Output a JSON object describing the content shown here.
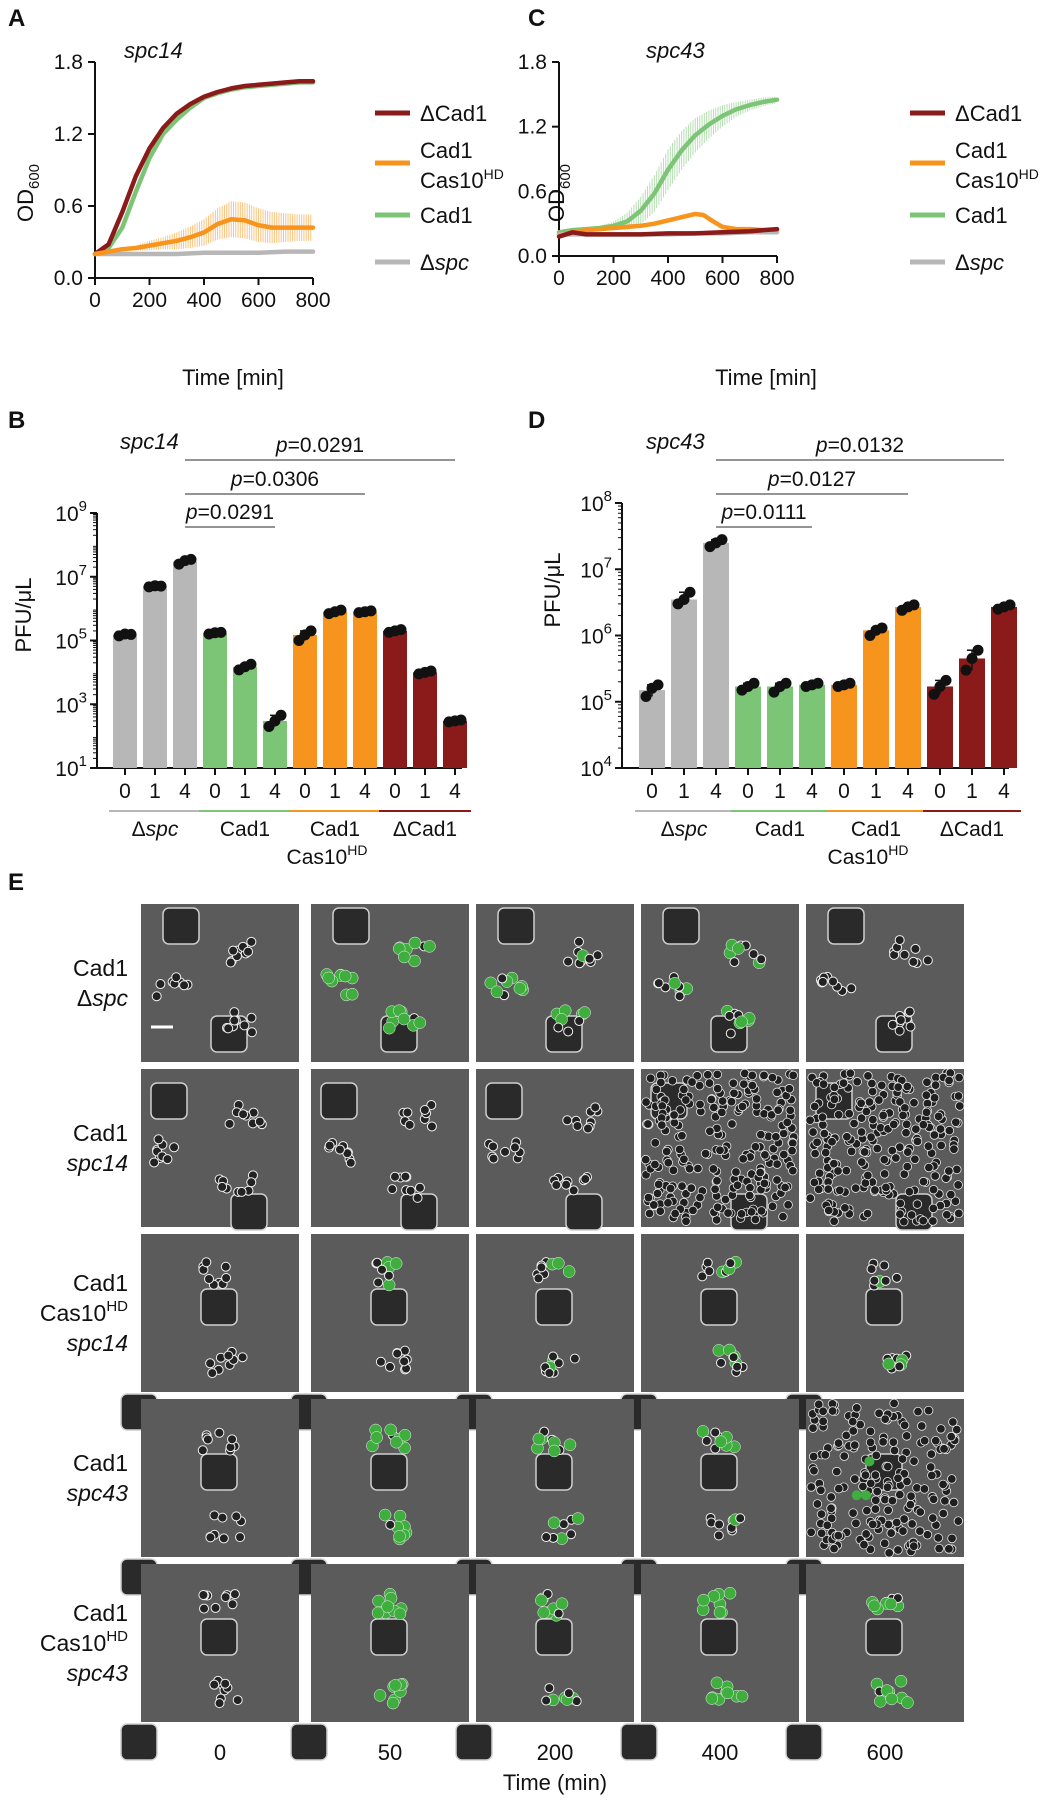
{
  "panel_labels": {
    "A": "A",
    "B": "B",
    "C": "C",
    "D": "D",
    "E": "E"
  },
  "colors": {
    "dcad1": "#8b1a1a",
    "cad1_cas10hd": "#f7941d",
    "cad1": "#7cc576",
    "dspc": "#b7b7b7",
    "dot": "#111111"
  },
  "chart_data": [
    {
      "panel": "A",
      "type": "line",
      "title": "spc14",
      "xlabel": "Time [min]",
      "ylabel_main": "OD",
      "ylabel_sub": "600",
      "xlim": [
        0,
        800
      ],
      "ylim": [
        0,
        1.8
      ],
      "xticks": [
        0,
        200,
        400,
        600,
        800
      ],
      "yticks": [
        "0.0",
        "0.6",
        "1.2",
        "1.8"
      ],
      "legend": [
        "ΔCad1",
        "Cad1",
        "Cas10",
        "HD",
        "Cad1",
        "Δ",
        "spc"
      ],
      "series": [
        {
          "key": "cad1",
          "x": [
            0,
            50,
            100,
            150,
            200,
            250,
            300,
            350,
            400,
            450,
            500,
            550,
            600,
            650,
            700,
            750,
            800
          ],
          "y": [
            0.2,
            0.25,
            0.42,
            0.72,
            1.0,
            1.2,
            1.32,
            1.42,
            1.5,
            1.54,
            1.57,
            1.59,
            1.6,
            1.61,
            1.62,
            1.63,
            1.63
          ]
        },
        {
          "key": "dcad1",
          "x": [
            0,
            50,
            100,
            150,
            200,
            250,
            300,
            350,
            400,
            450,
            500,
            550,
            600,
            650,
            700,
            750,
            800
          ],
          "y": [
            0.2,
            0.28,
            0.55,
            0.85,
            1.08,
            1.25,
            1.37,
            1.45,
            1.51,
            1.55,
            1.58,
            1.6,
            1.61,
            1.62,
            1.63,
            1.64,
            1.64
          ]
        },
        {
          "key": "dspc",
          "x": [
            0,
            50,
            100,
            200,
            300,
            400,
            500,
            600,
            700,
            800
          ],
          "y": [
            0.2,
            0.2,
            0.2,
            0.2,
            0.2,
            0.21,
            0.21,
            0.21,
            0.22,
            0.22
          ]
        },
        {
          "key": "cad1_cas10hd",
          "x": [
            0,
            50,
            100,
            150,
            200,
            250,
            300,
            350,
            400,
            450,
            500,
            550,
            600,
            650,
            700,
            750,
            800
          ],
          "y": [
            0.2,
            0.22,
            0.24,
            0.25,
            0.27,
            0.29,
            0.31,
            0.34,
            0.38,
            0.45,
            0.49,
            0.48,
            0.44,
            0.42,
            0.42,
            0.42,
            0.42
          ],
          "err": [
            0,
            0,
            0.01,
            0.02,
            0.04,
            0.05,
            0.07,
            0.09,
            0.11,
            0.13,
            0.15,
            0.15,
            0.14,
            0.13,
            0.12,
            0.11,
            0.11
          ]
        }
      ]
    },
    {
      "panel": "C",
      "type": "line",
      "title": "spc43",
      "xlabel": "Time [min]",
      "ylabel_main": "OD",
      "ylabel_sub": "600",
      "xlim": [
        0,
        800
      ],
      "ylim": [
        0,
        1.8
      ],
      "xticks": [
        0,
        200,
        400,
        600,
        800
      ],
      "yticks": [
        "0.0",
        "0.6",
        "1.2",
        "1.8"
      ],
      "legend": [
        "ΔCad1",
        "Cad1",
        "Cas10",
        "HD",
        "Cad1",
        "Δ",
        "spc"
      ],
      "series": [
        {
          "key": "cad1",
          "x": [
            0,
            50,
            100,
            150,
            200,
            250,
            300,
            350,
            400,
            450,
            500,
            550,
            600,
            650,
            700,
            750,
            800
          ],
          "y": [
            0.22,
            0.24,
            0.25,
            0.26,
            0.28,
            0.32,
            0.42,
            0.58,
            0.8,
            0.98,
            1.12,
            1.22,
            1.3,
            1.36,
            1.4,
            1.43,
            1.45
          ],
          "err": [
            0,
            0,
            0.01,
            0.02,
            0.04,
            0.08,
            0.13,
            0.17,
            0.19,
            0.18,
            0.16,
            0.13,
            0.1,
            0.07,
            0.05,
            0.04,
            0.03
          ]
        },
        {
          "key": "cad1_cas10hd",
          "x": [
            0,
            50,
            100,
            150,
            200,
            250,
            300,
            350,
            400,
            450,
            500,
            530,
            560,
            600,
            650,
            700,
            750,
            800
          ],
          "y": [
            0.2,
            0.22,
            0.24,
            0.25,
            0.26,
            0.27,
            0.28,
            0.3,
            0.33,
            0.36,
            0.39,
            0.38,
            0.33,
            0.27,
            0.25,
            0.25,
            0.24,
            0.24
          ]
        },
        {
          "key": "dspc",
          "x": [
            0,
            100,
            200,
            300,
            400,
            500,
            600,
            700,
            800
          ],
          "y": [
            0.2,
            0.2,
            0.2,
            0.2,
            0.2,
            0.21,
            0.21,
            0.22,
            0.22
          ]
        },
        {
          "key": "dcad1",
          "x": [
            0,
            50,
            100,
            150,
            200,
            300,
            400,
            500,
            600,
            700,
            800
          ],
          "y": [
            0.18,
            0.22,
            0.2,
            0.2,
            0.2,
            0.2,
            0.21,
            0.21,
            0.22,
            0.23,
            0.25
          ]
        }
      ]
    },
    {
      "panel": "B",
      "type": "bar",
      "title": "spc14",
      "ylabel": "PFU/μL",
      "log_scale": true,
      "ylim_exp": [
        1,
        9
      ],
      "yticks": [
        {
          "base": "10",
          "exp": "9"
        },
        {
          "base": "10",
          "exp": "7"
        },
        {
          "base": "10",
          "exp": "5"
        },
        {
          "base": "10",
          "exp": "3"
        },
        {
          "base": "10",
          "exp": "1"
        }
      ],
      "tick_labels": [
        "0",
        "1",
        "4",
        "0",
        "1",
        "4",
        "0",
        "1",
        "4",
        "0",
        "1",
        "4"
      ],
      "groups": [
        {
          "key": "dspc",
          "label_pre": "Δ",
          "label_it": "spc",
          "values": [
            150000,
            5000000,
            30000000
          ],
          "points": [
            [
              140000,
              160000,
              155000
            ],
            [
              4800000,
              5200000,
              5100000
            ],
            [
              25000000,
              32000000,
              35000000
            ]
          ]
        },
        {
          "key": "cad1",
          "label": "Cad1",
          "values": [
            170000,
            15000,
            300
          ],
          "points": [
            [
              160000,
              175000,
              180000
            ],
            [
              12000,
              15000,
              18000
            ],
            [
              200,
              300,
              450
            ]
          ]
        },
        {
          "key": "cad1_cas10hd",
          "label": "Cad1",
          "sub": "Cas10",
          "sup": "HD",
          "values": [
            150000,
            800000,
            800000
          ],
          "points": [
            [
              100000,
              150000,
              200000
            ],
            [
              700000,
              800000,
              900000
            ],
            [
              750000,
              800000,
              850000
            ]
          ]
        },
        {
          "key": "dcad1",
          "label": "ΔCad1",
          "values": [
            200000,
            10000,
            300
          ],
          "points": [
            [
              180000,
              200000,
              220000
            ],
            [
              9000,
              10000,
              11000
            ],
            [
              280,
              300,
              320
            ]
          ]
        }
      ],
      "brackets": [
        {
          "p_label": "p",
          "p_value": "=0.0291",
          "from": 2,
          "to": 11
        },
        {
          "p_label": "p",
          "p_value": "=0.0306",
          "from": 2,
          "to": 8
        },
        {
          "p_label": "p",
          "p_value": "=0.0291",
          "from": 2,
          "to": 5
        }
      ]
    },
    {
      "panel": "D",
      "type": "bar",
      "title": "spc43",
      "ylabel": "PFU/μL",
      "log_scale": true,
      "ylim_exp": [
        4,
        8
      ],
      "yticks": [
        {
          "base": "10",
          "exp": "8"
        },
        {
          "base": "10",
          "exp": "7"
        },
        {
          "base": "10",
          "exp": "6"
        },
        {
          "base": "10",
          "exp": "5"
        },
        {
          "base": "10",
          "exp": "4"
        }
      ],
      "tick_labels": [
        "0",
        "1",
        "4",
        "0",
        "1",
        "4",
        "0",
        "1",
        "4",
        "0",
        "1",
        "4"
      ],
      "groups": [
        {
          "key": "dspc",
          "label_pre": "Δ",
          "label_it": "spc",
          "values": [
            150000,
            3500000,
            25000000
          ],
          "points": [
            [
              120000,
              160000,
              180000
            ],
            [
              3000000,
              3500000,
              4500000
            ],
            [
              22000000,
              25000000,
              28000000
            ]
          ]
        },
        {
          "key": "cad1",
          "label": "Cad1",
          "values": [
            170000,
            170000,
            180000
          ],
          "points": [
            [
              150000,
              170000,
              190000
            ],
            [
              140000,
              170000,
              190000
            ],
            [
              170000,
              180000,
              190000
            ]
          ]
        },
        {
          "key": "cad1_cas10hd",
          "label": "Cad1",
          "sub": "Cas10",
          "sup": "HD",
          "values": [
            180000,
            1200000,
            2700000
          ],
          "points": [
            [
              170000,
              180000,
              190000
            ],
            [
              1000000,
              1200000,
              1300000
            ],
            [
              2400000,
              2700000,
              2900000
            ]
          ]
        },
        {
          "key": "dcad1",
          "label": "ΔCad1",
          "values": [
            170000,
            450000,
            2700000
          ],
          "points": [
            [
              130000,
              170000,
              210000
            ],
            [
              300000,
              450000,
              600000
            ],
            [
              2500000,
              2700000,
              2900000
            ]
          ]
        }
      ],
      "brackets": [
        {
          "p_label": "p",
          "p_value": "=0.0132",
          "from": 2,
          "to": 11
        },
        {
          "p_label": "p",
          "p_value": "=0.0127",
          "from": 2,
          "to": 8
        },
        {
          "p_label": "p",
          "p_value": "=0.0111",
          "from": 2,
          "to": 5
        }
      ]
    }
  ],
  "panel_e": {
    "rows": [
      {
        "lines": [
          {
            "text": "Cad1",
            "italic": false
          },
          {
            "pre": "Δ",
            "text": "spc",
            "italic": true
          }
        ],
        "density": [
          0,
          0,
          0,
          0,
          0
        ],
        "green": [
          0,
          0.9,
          0.5,
          0.4,
          0
        ]
      },
      {
        "lines": [
          {
            "text": "Cad1",
            "italic": false
          },
          {
            "text": "spc14",
            "italic": true
          }
        ],
        "density": [
          0,
          0,
          0,
          1,
          1
        ],
        "green": [
          0,
          0,
          0,
          0,
          0
        ]
      },
      {
        "lines": [
          {
            "text": "Cad1",
            "italic": false
          },
          {
            "text": "Cas10",
            "sup": "HD",
            "italic": false
          },
          {
            "text": "spc14",
            "italic": true
          }
        ],
        "density": [
          0,
          0,
          0,
          0,
          0
        ],
        "green": [
          0,
          0.4,
          0.3,
          0.3,
          0.3
        ]
      },
      {
        "lines": [
          {
            "text": "Cad1",
            "italic": false
          },
          {
            "text": "spc43",
            "italic": true
          }
        ],
        "density": [
          0,
          0,
          0,
          0,
          0.8
        ],
        "green": [
          0,
          0.8,
          0.6,
          0.4,
          0.1
        ]
      },
      {
        "lines": [
          {
            "text": "Cad1",
            "italic": false
          },
          {
            "text": "Cas10",
            "sup": "HD",
            "italic": false
          },
          {
            "text": "spc43",
            "italic": true
          }
        ],
        "density": [
          0,
          0,
          0,
          0,
          0
        ],
        "green": [
          0,
          0.9,
          0.9,
          0.8,
          0.8
        ]
      }
    ],
    "time_labels": [
      "0",
      "50",
      "200",
      "400",
      "600"
    ],
    "xlabel": "Time (min)"
  }
}
